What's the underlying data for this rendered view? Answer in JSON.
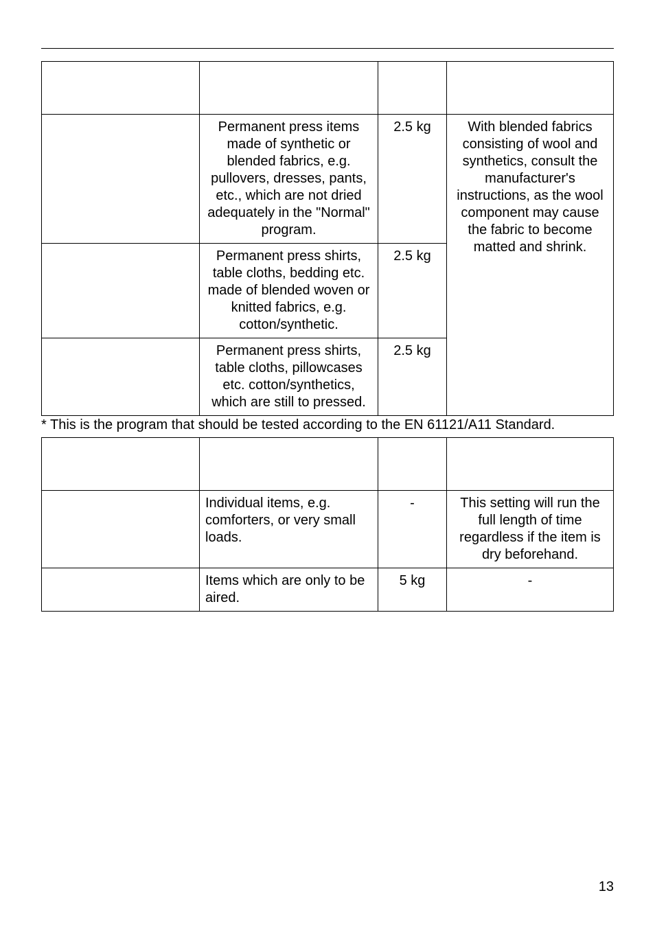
{
  "table1": {
    "rows": [
      {
        "program": "",
        "fabric": "Permanent press items made of synthetic or blended fabrics, e.g. pullovers, dresses, pants, etc., which are not dried adequately in the \"Normal\" program.",
        "load": "2.5 kg",
        "notes": "With blended fabrics consisting of wool and synthetics, consult the manufacturer's instructions, as the wool component may cause the fabric to become matted and shrink."
      },
      {
        "program": "",
        "fabric": "Permanent press shirts, table cloths, bedding etc. made of blended woven or knitted fabrics, e.g. cotton/synthetic.",
        "load": "2.5 kg",
        "notes": ""
      },
      {
        "program": "",
        "fabric": "Permanent press shirts, table cloths, pillowcases etc. cotton/synthetics, which are still to pressed.",
        "load": "2.5 kg",
        "notes": ""
      }
    ]
  },
  "footnote": "* This is the program that should be tested according to the EN 61121/A11 Standard.",
  "table2": {
    "rows": [
      {
        "program": "",
        "fabric": "Individual items, e.g. comforters, or very small loads.",
        "load": "-",
        "notes": "This setting will run the full length of time regardless if the item is dry beforehand."
      },
      {
        "program": "",
        "fabric": "Items which are only to be aired.",
        "load": "5 kg",
        "notes": "-"
      }
    ]
  },
  "page_number": "13"
}
